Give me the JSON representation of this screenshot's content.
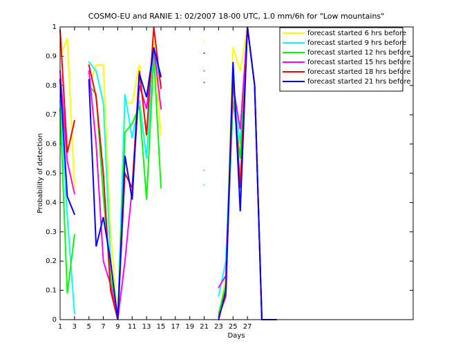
{
  "chart_data": {
    "type": "line",
    "title": "COSMO-EU and RANIE 1: 02/2007 18-00 UTC, 1.0 mm/6h for \"Low mountains\"",
    "x_label": "Days",
    "y_label": "Probability of detection",
    "x": [
      1,
      2,
      3,
      4,
      5,
      6,
      7,
      8,
      9,
      10,
      11,
      12,
      13,
      14,
      15,
      16,
      17,
      18,
      19,
      20,
      21,
      22,
      23,
      24,
      25,
      26,
      27,
      28,
      29,
      30,
      31
    ],
    "series": [
      {
        "name": "forecast started 6 hrs before",
        "color": "#ffff00",
        "values": [
          0.9,
          0.96,
          0.45,
          null,
          0.8,
          0.87,
          0.87,
          0.3,
          0,
          0.74,
          0.74,
          0.87,
          0.62,
          0.95,
          0.63,
          null,
          null,
          null,
          null,
          null,
          0.95,
          null,
          0,
          0.15,
          0.93,
          0.85,
          1,
          0.8,
          0,
          0,
          0
        ]
      },
      {
        "name": "forecast started 9 hrs before",
        "color": "#00ffff",
        "values": [
          0.75,
          0.35,
          0.02,
          null,
          0.88,
          0.85,
          0.74,
          0.2,
          0,
          0.77,
          0.62,
          0.75,
          0.55,
          0.92,
          0.8,
          null,
          null,
          null,
          null,
          null,
          0.46,
          null,
          0.08,
          0.2,
          0.8,
          0.6,
          1,
          0.8,
          0,
          0,
          0
        ]
      },
      {
        "name": "forecast started 12 hrs before",
        "color": "#00ff00",
        "values": [
          0.72,
          0.09,
          0.29,
          null,
          0.8,
          0.77,
          0.42,
          0.15,
          0,
          0.64,
          0.67,
          0.73,
          0.41,
          0.9,
          0.45,
          null,
          null,
          null,
          null,
          null,
          0.51,
          null,
          0.02,
          0.12,
          0.75,
          0.55,
          1,
          0.8,
          0,
          0,
          0
        ]
      },
      {
        "name": "forecast started 15 hrs before",
        "color": "#ff00ff",
        "values": [
          0.85,
          0.54,
          0.43,
          null,
          0.85,
          0.6,
          0.2,
          0.12,
          0,
          0.2,
          0.45,
          0.8,
          0.72,
          0.93,
          0.72,
          null,
          null,
          null,
          null,
          null,
          0.85,
          null,
          0.11,
          0.15,
          0.8,
          0.65,
          1,
          0.8,
          0,
          0,
          0
        ]
      },
      {
        "name": "forecast started 18 hrs before",
        "color": "#ff0000",
        "values": [
          0.99,
          0.57,
          0.68,
          null,
          0.87,
          0.76,
          0.5,
          0.1,
          0,
          0.5,
          0.45,
          0.85,
          0.63,
          1,
          0.79,
          null,
          null,
          null,
          null,
          null,
          0.81,
          null,
          0.01,
          0.08,
          0.85,
          0.45,
          1,
          0.8,
          0,
          0,
          0
        ]
      },
      {
        "name": "forecast started 21 hrs before",
        "color": "#0000ff",
        "values": [
          0.82,
          0.42,
          0.36,
          null,
          0.82,
          0.25,
          0.35,
          0.2,
          0,
          0.56,
          0.41,
          0.84,
          0.76,
          0.93,
          0.83,
          null,
          null,
          null,
          null,
          null,
          0.91,
          null,
          0,
          0.1,
          0.88,
          0.37,
          1,
          0.8,
          0,
          0,
          0
        ]
      }
    ],
    "xlim": [
      1,
      50
    ],
    "xticks": [
      1,
      3,
      5,
      7,
      9,
      11,
      13,
      15,
      17,
      19,
      21,
      23,
      25,
      27
    ],
    "ylim": [
      0,
      1
    ],
    "yticks": [
      0,
      0.1,
      0.2,
      0.3,
      0.4,
      0.5,
      0.6,
      0.7,
      0.8,
      0.9,
      1
    ],
    "legend": "northeast",
    "grid": false
  }
}
